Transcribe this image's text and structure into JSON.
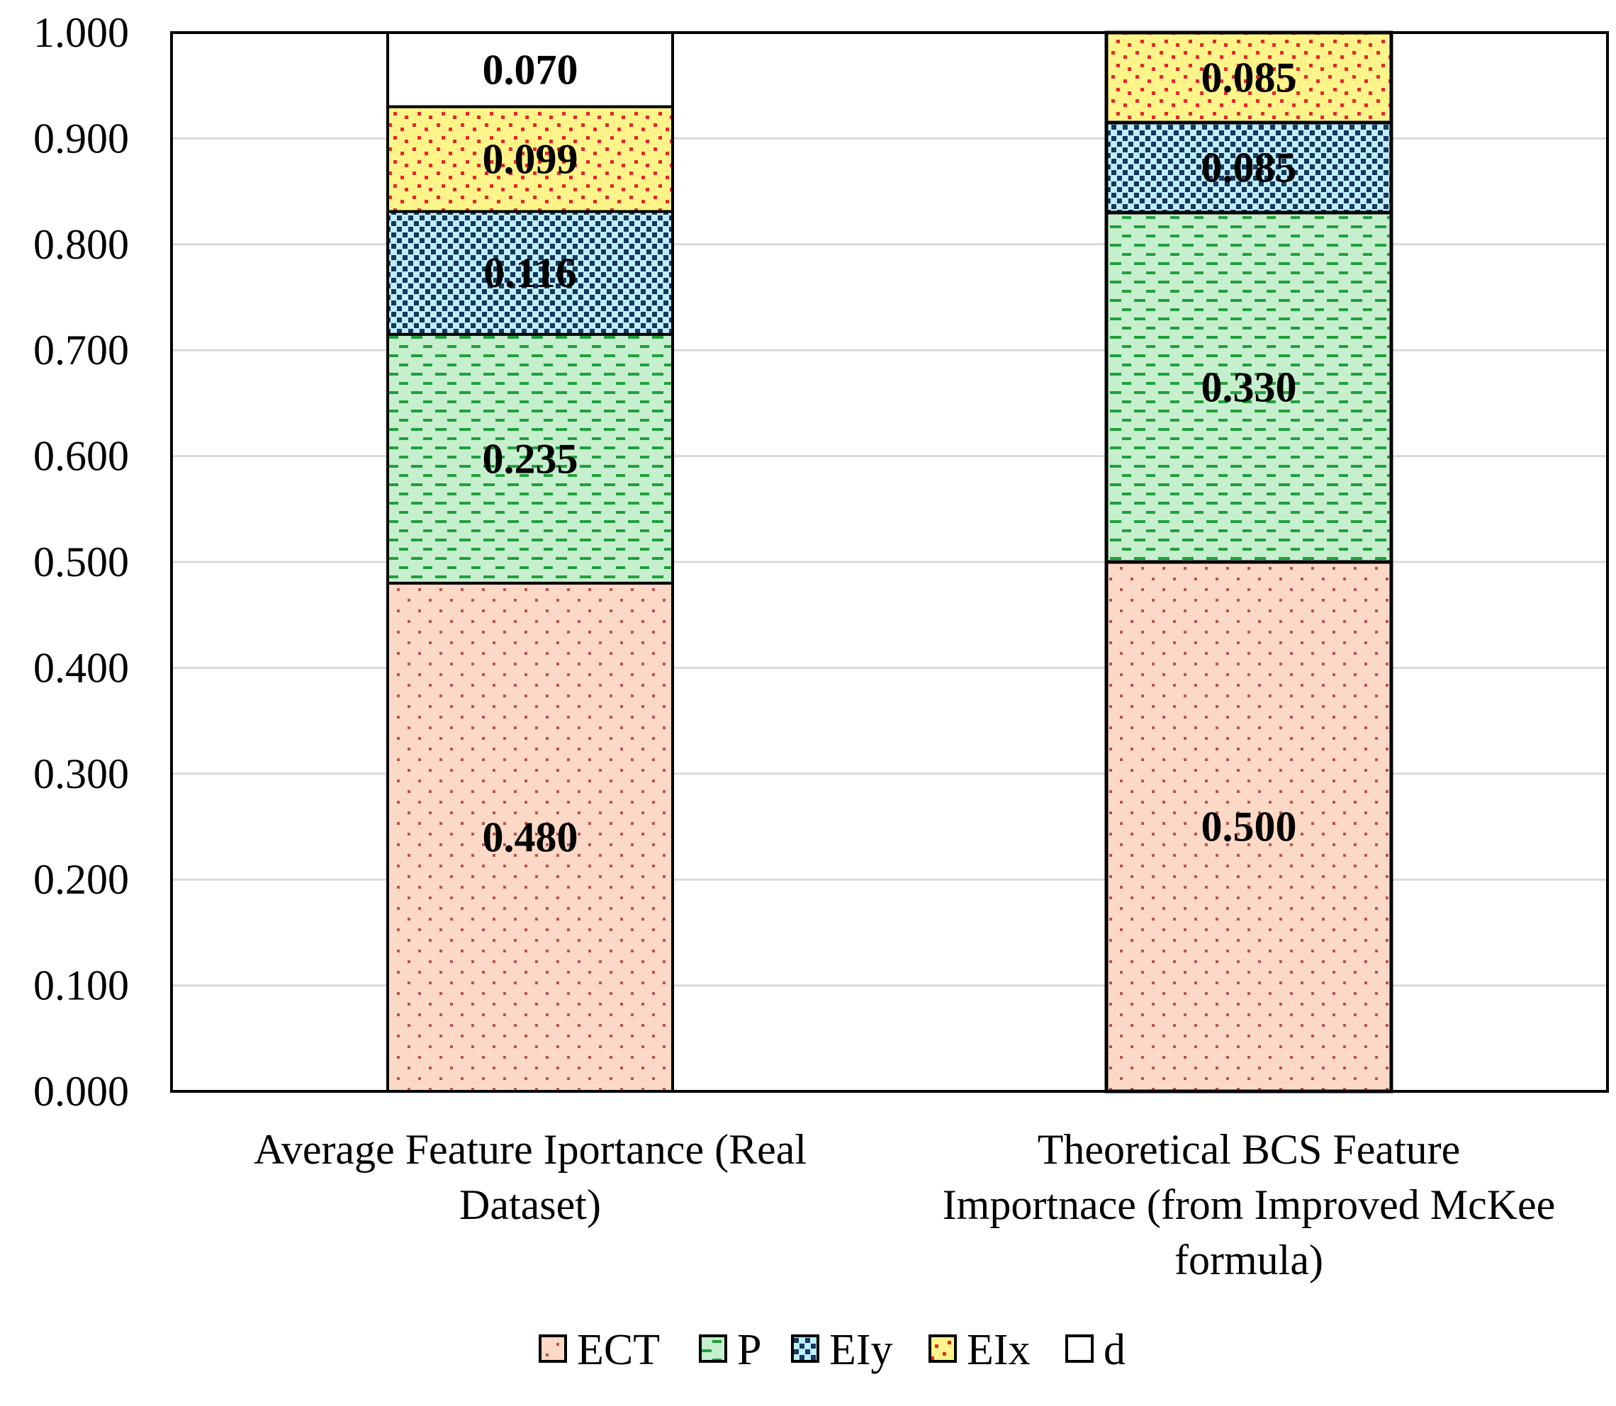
{
  "chart_data": {
    "type": "bar",
    "stacked": true,
    "title": "",
    "xlabel": "",
    "ylabel": "",
    "ylim": [
      0,
      1
    ],
    "y_ticks": [
      "0.000",
      "0.100",
      "0.200",
      "0.300",
      "0.400",
      "0.500",
      "0.600",
      "0.700",
      "0.800",
      "0.900",
      "1.000"
    ],
    "grid": true,
    "legend_position": "bottom",
    "categories": [
      [
        "Average Feature Iportance (Real",
        "Dataset)"
      ],
      [
        "Theoretical BCS Feature",
        "Importnace (from Improved McKee",
        "formula)"
      ]
    ],
    "series": [
      {
        "name": "ECT",
        "values": [
          0.48,
          0.5
        ],
        "labels": [
          "0.480",
          "0.500"
        ],
        "color": "#fcd9c6",
        "pattern_color": "#c0504d",
        "pattern": "dots"
      },
      {
        "name": "P",
        "values": [
          0.235,
          0.33
        ],
        "labels": [
          "0.235",
          "0.330"
        ],
        "color": "#c6efce",
        "pattern_color": "#1fa03a",
        "pattern": "dashes"
      },
      {
        "name": "EIy",
        "values": [
          0.116,
          0.085
        ],
        "labels": [
          "0.116",
          "0.085"
        ],
        "color": "#bdeefc",
        "pattern_color": "#17375e",
        "pattern": "checks"
      },
      {
        "name": "EIx",
        "values": [
          0.099,
          0.085
        ],
        "labels": [
          "0.099",
          "0.085"
        ],
        "color": "#fff48a",
        "pattern_color": "#e8262b",
        "pattern": "confetti"
      },
      {
        "name": "d",
        "values": [
          0.07,
          null
        ],
        "labels": [
          "0.070",
          ""
        ],
        "color": "#ffffff",
        "pattern_color": "#ffffff",
        "pattern": "none"
      }
    ]
  }
}
